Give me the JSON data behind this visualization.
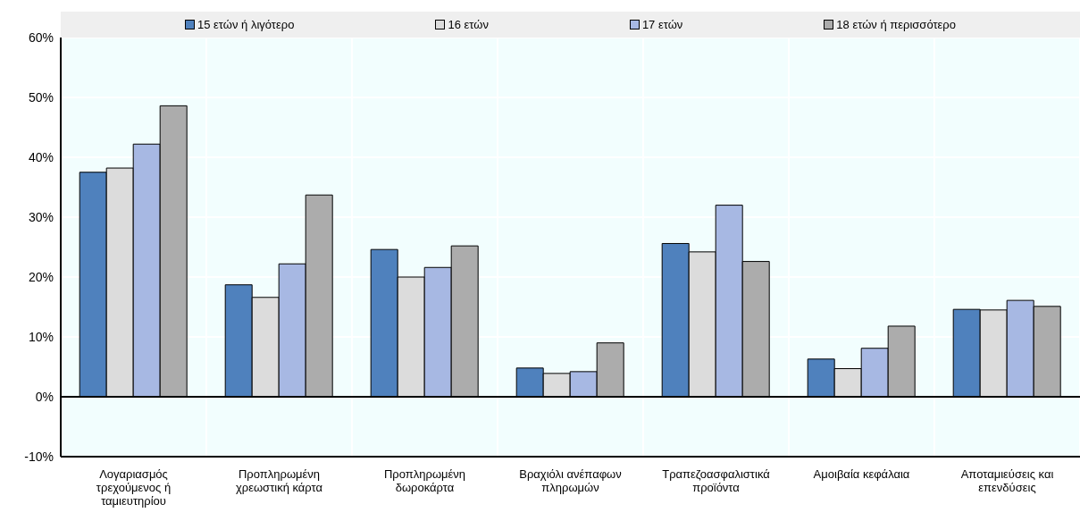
{
  "chart_data": {
    "type": "bar",
    "categories": [
      "Λογαριασμός τρεχούμενος ή ταμιευτηρίου",
      "Προπληρωμένη χρεωστική κάρτα",
      "Προπληρωμένη δωροκάρτα",
      "Βραχιόλι ανέπαφων πληρωμών",
      "Τραπεζοασφαλιστικά προϊόντα",
      "Αμοιβαία κεφάλαια",
      "Αποταμιεύσεις και επενδύσεις"
    ],
    "series": [
      {
        "name": "15 ετών ή λιγότερο",
        "color": "#4f81bd",
        "values": [
          37.5,
          18.7,
          24.6,
          4.8,
          25.6,
          6.3,
          14.6
        ]
      },
      {
        "name": "16 ετών",
        "color": "#dcdcdc",
        "values": [
          38.2,
          16.6,
          20.0,
          3.9,
          24.2,
          4.7,
          14.5
        ]
      },
      {
        "name": "17 ετών",
        "color": "#a7b8e3",
        "values": [
          42.2,
          22.2,
          21.6,
          4.2,
          32.0,
          8.1,
          16.1
        ]
      },
      {
        "name": "18 ετών ή περισσότερο",
        "color": "#acacac",
        "values": [
          48.6,
          33.7,
          25.2,
          9.0,
          22.6,
          11.8,
          15.1
        ]
      }
    ],
    "ylim": [
      -10,
      60
    ],
    "yticks": [
      {
        "value": -10,
        "label": "-10%"
      },
      {
        "value": 0,
        "label": "0%"
      },
      {
        "value": 10,
        "label": "10%"
      },
      {
        "value": 20,
        "label": "20%"
      },
      {
        "value": 30,
        "label": "30%"
      },
      {
        "value": 40,
        "label": "40%"
      },
      {
        "value": 50,
        "label": "50%"
      },
      {
        "value": 60,
        "label": "60%"
      }
    ],
    "grid": true,
    "legend": "top"
  }
}
